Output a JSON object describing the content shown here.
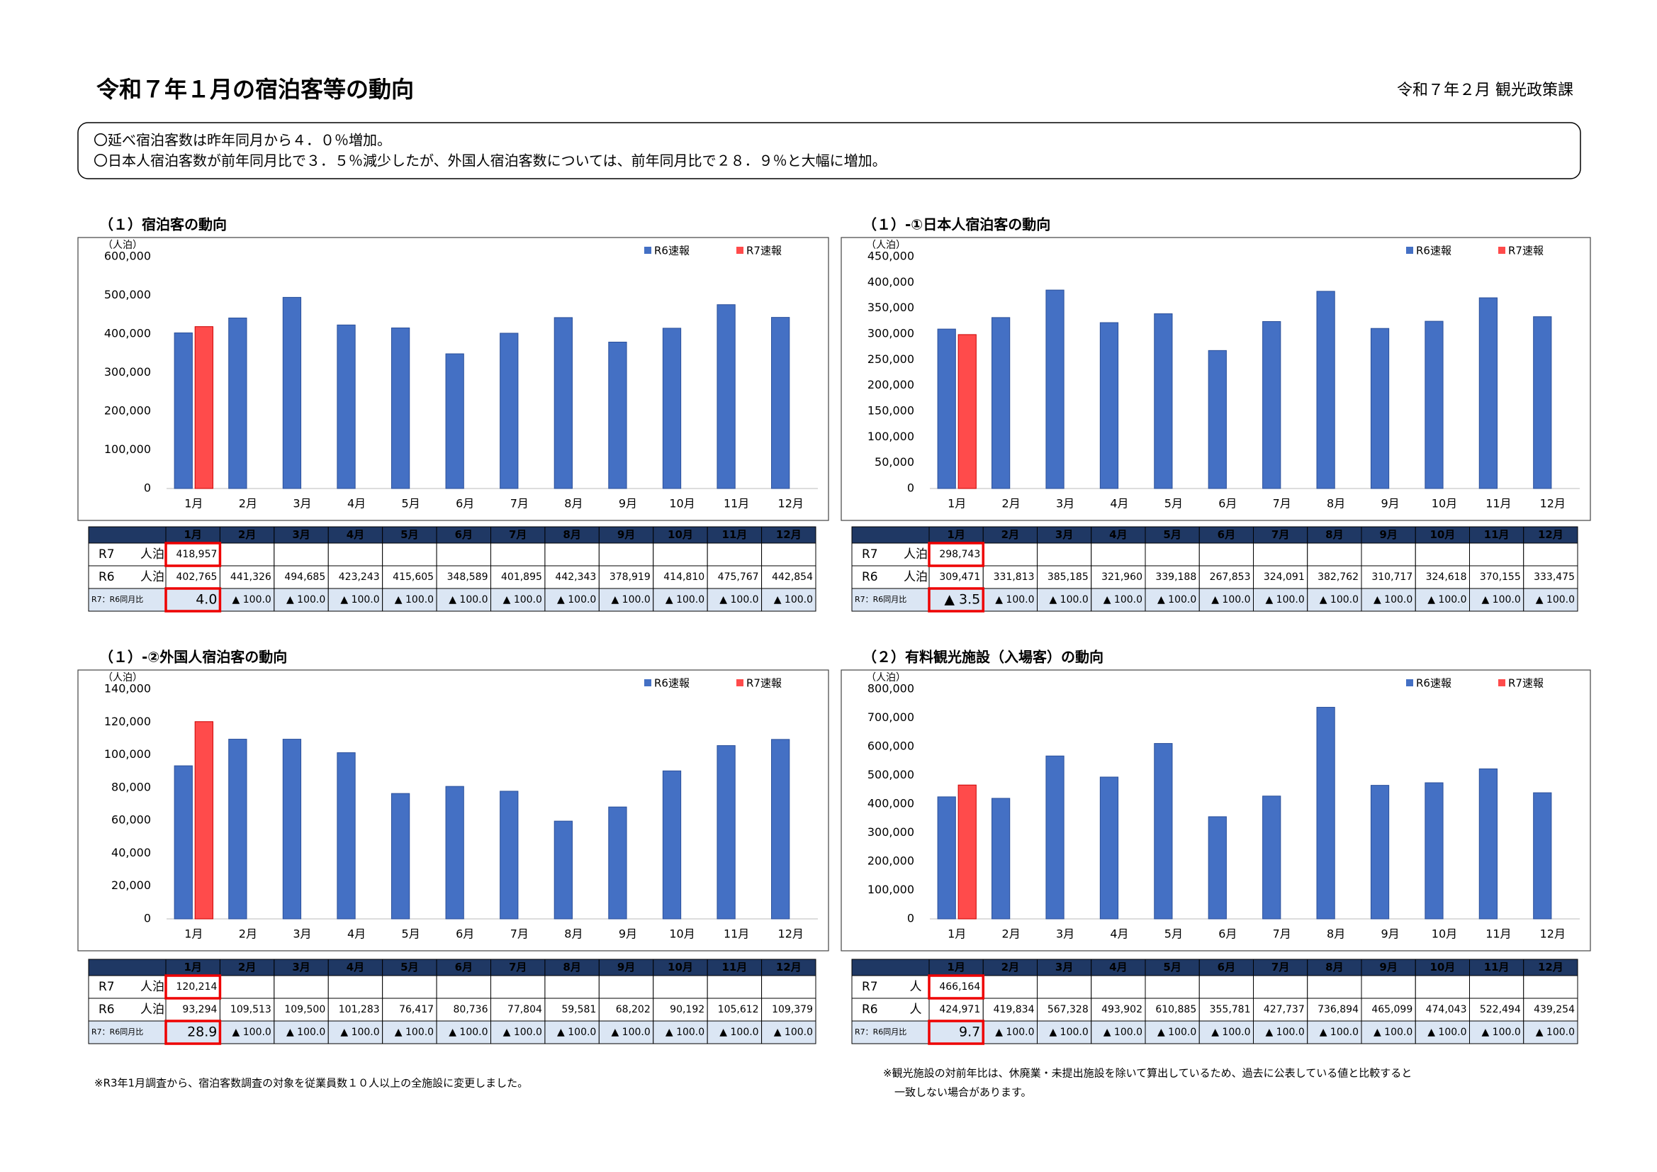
{
  "header": {
    "title": "令和７年１月の宿泊客等の動向",
    "issuer": "令和７年２月 観光政策課"
  },
  "summary": [
    "〇延べ宿泊客数は昨年同月から４．０％増加。",
    "〇日本人宿泊客数が前年同月比で３．５％減少したが、外国人宿泊客数については、前年同月比で２８．９％と大幅に増加。"
  ],
  "chart_data": [
    {
      "type": "bar",
      "title": "（１）宿泊客の動向",
      "unit_label": "（人泊）",
      "legend": "top-right",
      "categories": [
        "1月",
        "2月",
        "3月",
        "4月",
        "5月",
        "6月",
        "7月",
        "8月",
        "9月",
        "10月",
        "11月",
        "12月"
      ],
      "series": [
        {
          "name": "R6速報",
          "color": "#4470c4",
          "values": [
            402765,
            441326,
            494685,
            423243,
            415605,
            348589,
            401895,
            442343,
            378919,
            414810,
            475767,
            442854
          ],
          "value_labels": [
            "402,765",
            "441,326",
            "494,685",
            "423,243",
            "415,605",
            "348,589",
            "401,895",
            "442,343",
            "378,919",
            "414,810",
            "475,767",
            "442,854"
          ]
        },
        {
          "name": "R7速報",
          "color": "#ff4b4b",
          "values": [
            418957,
            null,
            null,
            null,
            null,
            null,
            null,
            null,
            null,
            null,
            null,
            null
          ],
          "value_labels": [
            "418,957",
            null,
            null,
            null,
            null,
            null,
            null,
            null,
            null,
            null,
            null,
            null
          ]
        }
      ],
      "ylim": [
        0,
        600000
      ],
      "yticks": [
        0,
        {
          "value": 100000,
          "label": "100,000"
        },
        {
          "value": 200000,
          "label": "200,000"
        },
        {
          "value": 300000,
          "label": "300,000"
        },
        {
          "value": 400000,
          "label": "400,000"
        },
        {
          "value": 500000,
          "label": "500,000"
        },
        {
          "value": 600000,
          "label": "600,000"
        }
      ]
    },
    {
      "type": "bar",
      "title": "（１）-①日本人宿泊客の動向",
      "unit_label": "（人泊）",
      "legend": "top-right",
      "categories": [
        "1月",
        "2月",
        "3月",
        "4月",
        "5月",
        "6月",
        "7月",
        "8月",
        "9月",
        "10月",
        "11月",
        "12月"
      ],
      "series": [
        {
          "name": "R6速報",
          "color": "#4470c4",
          "values": [
            309471,
            331813,
            385185,
            321960,
            339188,
            267853,
            324091,
            382762,
            310717,
            324618,
            370155,
            333475
          ],
          "value_labels": [
            "309,471",
            "331,813",
            "385,185",
            "321,960",
            "339,188",
            "267,853",
            "324,091",
            "382,762",
            "310,717",
            "324,618",
            "370,155",
            "333,475"
          ]
        },
        {
          "name": "R7速報",
          "color": "#ff4b4b",
          "values": [
            298743,
            null,
            null,
            null,
            null,
            null,
            null,
            null,
            null,
            null,
            null,
            null
          ],
          "value_labels": [
            "298,743",
            null,
            null,
            null,
            null,
            null,
            null,
            null,
            null,
            null,
            null,
            null
          ]
        }
      ],
      "ylim": [
        0,
        450000
      ],
      "yticks": [
        0,
        {
          "value": 50000,
          "label": "50,000"
        },
        {
          "value": 100000,
          "label": "100,000"
        },
        {
          "value": 150000,
          "label": "150,000"
        },
        {
          "value": 200000,
          "label": "200,000"
        },
        {
          "value": 250000,
          "label": "250,000"
        },
        {
          "value": 300000,
          "label": "300,000"
        },
        {
          "value": 350000,
          "label": "350,000"
        },
        {
          "value": 400000,
          "label": "400,000"
        },
        {
          "value": 450000,
          "label": "450,000"
        }
      ]
    },
    {
      "type": "bar",
      "title": "（１）-②外国人宿泊客の動向",
      "unit_label": "（人泊）",
      "legend": "top-right",
      "categories": [
        "1月",
        "2月",
        "3月",
        "4月",
        "5月",
        "6月",
        "7月",
        "8月",
        "9月",
        "10月",
        "11月",
        "12月"
      ],
      "series": [
        {
          "name": "R6速報",
          "color": "#4470c4",
          "values": [
            93294,
            109513,
            109500,
            101283,
            76417,
            80736,
            77804,
            59581,
            68202,
            90192,
            105612,
            109379
          ],
          "value_labels": [
            "93,294",
            "109,513",
            "109,500",
            "101,283",
            "76,417",
            "80,736",
            "77,804",
            "59,581",
            "68,202",
            "90,192",
            "105,612",
            "109,379"
          ]
        },
        {
          "name": "R7速報",
          "color": "#ff4b4b",
          "values": [
            120214,
            null,
            null,
            null,
            null,
            null,
            null,
            null,
            null,
            null,
            null,
            null
          ],
          "value_labels": [
            "120,214",
            null,
            null,
            null,
            null,
            null,
            null,
            null,
            null,
            null,
            null,
            null
          ]
        }
      ],
      "ylim": [
        0,
        140000
      ],
      "yticks": [
        0,
        {
          "value": 20000,
          "label": "20,000"
        },
        {
          "value": 40000,
          "label": "40,000"
        },
        {
          "value": 60000,
          "label": "60,000"
        },
        {
          "value": 80000,
          "label": "80,000"
        },
        {
          "value": 100000,
          "label": "100,000"
        },
        {
          "value": 120000,
          "label": "120,000"
        },
        {
          "value": 140000,
          "label": "140,000"
        }
      ]
    },
    {
      "type": "bar",
      "title": "（２）有料観光施設（入場客）の動向",
      "unit_label": "（人泊）",
      "legend": "top-right",
      "categories": [
        "1月",
        "2月",
        "3月",
        "4月",
        "5月",
        "6月",
        "7月",
        "8月",
        "9月",
        "10月",
        "11月",
        "12月"
      ],
      "series": [
        {
          "name": "R6速報",
          "color": "#4470c4",
          "values": [
            424971,
            419834,
            567328,
            493902,
            610885,
            355781,
            427737,
            736894,
            465099,
            474043,
            522494,
            439254
          ],
          "value_labels": [
            "424,971",
            "419,834",
            "567,328",
            "493,902",
            "610,885",
            "355,781",
            "427,737",
            "736,894",
            "465,099",
            "474,043",
            "522,494",
            "439,254"
          ]
        },
        {
          "name": "R7速報",
          "color": "#ff4b4b",
          "values": [
            466164,
            null,
            null,
            null,
            null,
            null,
            null,
            null,
            null,
            null,
            null,
            null
          ],
          "value_labels": [
            "466,164",
            null,
            null,
            null,
            null,
            null,
            null,
            null,
            null,
            null,
            null,
            null
          ]
        }
      ],
      "ylim": [
        0,
        800000
      ],
      "yticks": [
        0,
        {
          "value": 100000,
          "label": "100,000"
        },
        {
          "value": 200000,
          "label": "200,000"
        },
        {
          "value": 300000,
          "label": "300,000"
        },
        {
          "value": 400000,
          "label": "400,000"
        },
        {
          "value": 500000,
          "label": "500,000"
        },
        {
          "value": 600000,
          "label": "600,000"
        },
        {
          "value": 700000,
          "label": "700,000"
        },
        {
          "value": 800000,
          "label": "800,000"
        }
      ]
    }
  ],
  "tables": [
    {
      "r7_label": "R7",
      "r6_label": "R6",
      "unit": "人泊",
      "ratio_label": "R7：R6同月比",
      "ratios": [
        "4.0",
        "▲ 100.0",
        "▲ 100.0",
        "▲ 100.0",
        "▲ 100.0",
        "▲ 100.0",
        "▲ 100.0",
        "▲ 100.0",
        "▲ 100.0",
        "▲ 100.0",
        "▲ 100.0",
        "▲ 100.0"
      ]
    },
    {
      "r7_label": "R7",
      "r6_label": "R6",
      "unit": "人泊",
      "ratio_label": "R7：R6同月比",
      "ratios": [
        "▲ 3.5",
        "▲ 100.0",
        "▲ 100.0",
        "▲ 100.0",
        "▲ 100.0",
        "▲ 100.0",
        "▲ 100.0",
        "▲ 100.0",
        "▲ 100.0",
        "▲ 100.0",
        "▲ 100.0",
        "▲ 100.0"
      ]
    },
    {
      "r7_label": "R7",
      "r6_label": "R6",
      "unit": "人泊",
      "ratio_label": "R7：R6同月比",
      "ratios": [
        "28.9",
        "▲ 100.0",
        "▲ 100.0",
        "▲ 100.0",
        "▲ 100.0",
        "▲ 100.0",
        "▲ 100.0",
        "▲ 100.0",
        "▲ 100.0",
        "▲ 100.0",
        "▲ 100.0",
        "▲ 100.0"
      ]
    },
    {
      "r7_label": "R7",
      "r6_label": "R6",
      "unit": "人",
      "ratio_label": "R7：R6同月比",
      "ratios": [
        "9.7",
        "▲ 100.0",
        "▲ 100.0",
        "▲ 100.0",
        "▲ 100.0",
        "▲ 100.0",
        "▲ 100.0",
        "▲ 100.0",
        "▲ 100.0",
        "▲ 100.0",
        "▲ 100.0",
        "▲ 100.0"
      ]
    }
  ],
  "notes": [
    "※R3年1月調査から、宿泊客数調査の対象を従業員数１０人以上の全施設に変更しました。",
    "※観光施設の対前年比は、休廃業・未提出施設を除いて算出しているため、過去に公表している値と比較すると",
    "一致しない場合があります。"
  ]
}
